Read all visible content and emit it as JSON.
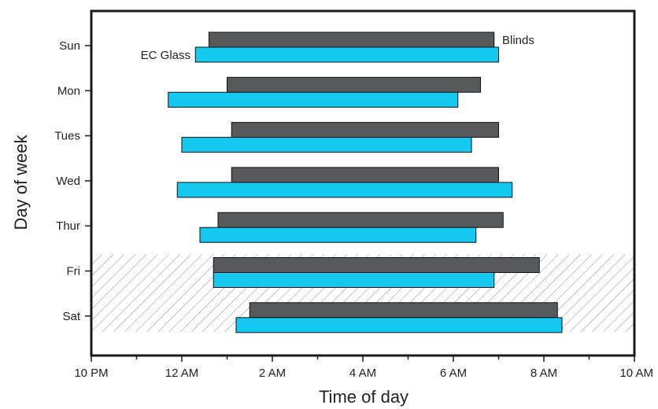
{
  "chart_data": {
    "type": "bar",
    "orientation": "horizontal-range",
    "ylabel": "Day of week",
    "xlabel": "Time of day",
    "categories": [
      "Sun",
      "Mon",
      "Tues",
      "Wed",
      "Thur",
      "Fri",
      "Sat"
    ],
    "x_ticks": [
      "10 PM",
      "12 AM",
      "2 AM",
      "4 AM",
      "6 AM",
      "8 AM",
      "10 AM"
    ],
    "x_unit": "hours after 10 PM",
    "xlim": [
      0,
      12
    ],
    "series": [
      {
        "name": "Blinds",
        "color": "#58595b",
        "ranges": [
          [
            2.6,
            8.9
          ],
          [
            3.0,
            8.6
          ],
          [
            3.1,
            9.0
          ],
          [
            3.1,
            9.0
          ],
          [
            2.8,
            9.1
          ],
          [
            2.7,
            9.9
          ],
          [
            3.5,
            10.3
          ]
        ]
      },
      {
        "name": "EC Glass",
        "color": "#14c8f0",
        "ranges": [
          [
            2.3,
            9.0
          ],
          [
            1.7,
            8.1
          ],
          [
            2.0,
            8.4
          ],
          [
            1.9,
            9.3
          ],
          [
            2.4,
            8.5
          ],
          [
            2.7,
            8.9
          ],
          [
            3.2,
            10.4
          ]
        ]
      }
    ],
    "weekend_hatch": [
      "Fri",
      "Sat"
    ],
    "series_labels": {
      "Blinds": "Blinds",
      "EC Glass": "EC Glass"
    }
  }
}
